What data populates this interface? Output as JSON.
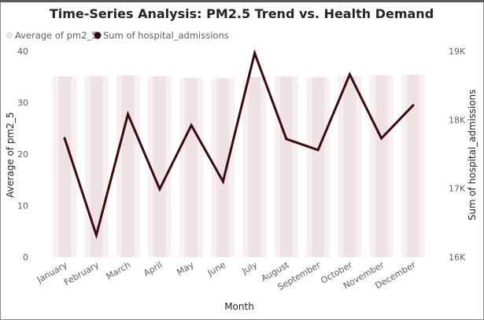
{
  "chart_data": {
    "type": "bar+line",
    "title": "Time-Series Analysis: PM2.5 Trend vs. Health Demand",
    "xlabel": "Month",
    "ylabel_left": "Average of pm2_5",
    "ylabel_right": "Sum of hospital_admissions",
    "categories": [
      "January",
      "February",
      "March",
      "April",
      "May",
      "June",
      "July",
      "August",
      "September",
      "October",
      "November",
      "December"
    ],
    "y_left_ticks": [
      "0",
      "10",
      "20",
      "30",
      "40"
    ],
    "y_right_ticks": [
      "16K",
      "17K",
      "18K",
      "19K"
    ],
    "ylim_left": [
      0,
      40
    ],
    "ylim_right": [
      16000,
      19000
    ],
    "series": [
      {
        "name": "Average of pm2_5",
        "type": "bar",
        "axis": "left",
        "color": "#efe2e4",
        "values": [
          35.1,
          35.2,
          35.3,
          35.1,
          34.8,
          34.7,
          35.0,
          35.1,
          34.9,
          35.2,
          35.3,
          35.4
        ]
      },
      {
        "name": "Sum of hospital_admissions",
        "type": "line",
        "axis": "right",
        "color": "#3a0a0f",
        "values": [
          17730,
          16320,
          18080,
          16990,
          17920,
          17100,
          18970,
          17720,
          17560,
          18660,
          17730,
          18210
        ]
      }
    ],
    "legend_position": "top-left",
    "grid": false
  }
}
